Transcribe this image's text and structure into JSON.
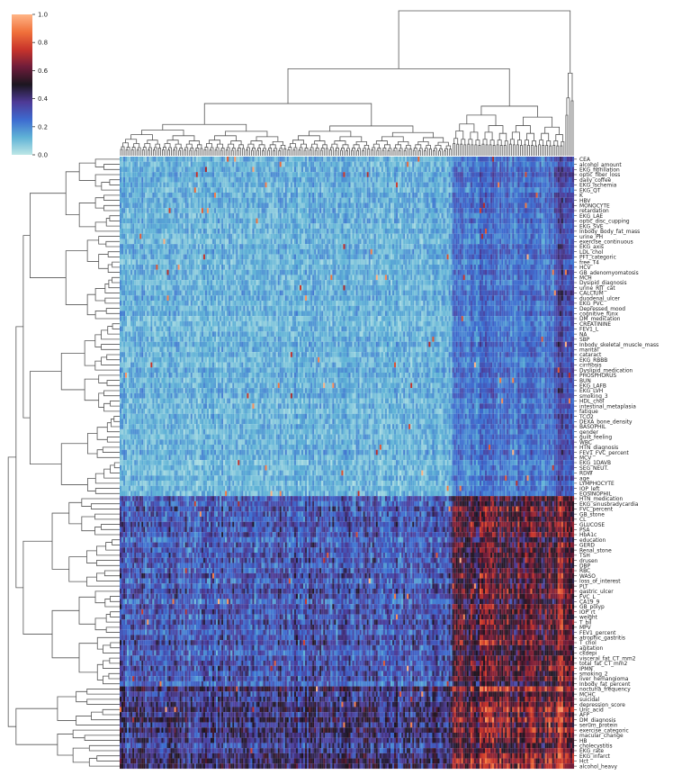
{
  "chart_data": {
    "type": "heatmap",
    "subtype": "clustermap",
    "colormap": "icefire",
    "colorbar": {
      "range": [
        0.0,
        1.0
      ],
      "ticks": [
        "0.0",
        "0.2",
        "0.4",
        "0.6",
        "0.8",
        "1.0"
      ],
      "colors": [
        "#bde7e6",
        "#5fb2d6",
        "#3d6bd0",
        "#4e3a96",
        "#1c1620",
        "#6e1c3a",
        "#c8342b",
        "#f0713b",
        "#ffb486"
      ]
    },
    "row_labels": [
      "CEA",
      "alcohol_amount",
      "EKG_fibrillation",
      "optic_fiber_loss",
      "daily_coffee",
      "EKG_ischemia",
      "EKG_QT",
      "K",
      "HBV",
      "MONOCYTE",
      "retardation",
      "EKG_LAE",
      "optic_disc_cupping",
      "EKG_SVE",
      "Inbody_Body_fat_mass",
      "urine_PH",
      "exercise_continuous",
      "EKG_axis",
      "LDL_chol",
      "PFT_categoric",
      "free_T4",
      "HCV",
      "GB_adenomyomatosis",
      "MCH",
      "Dysipid_diagnosis",
      "urine_RJT_cat",
      "CALCIUM",
      "duodenal_ulcer",
      "EKG_PVC",
      "Depressed_mood",
      "cognitive_funx",
      "DM_medication",
      "CREATININE",
      "FEV1_L",
      "NA",
      "SBP",
      "Inbody_skeletal_muscle_mass",
      "marital",
      "cataract",
      "EKG_RBBB",
      "cirrhosis",
      "Dyslipid_medication",
      "PHOSPHORUS",
      "BUN",
      "EKG_LAFB",
      "EKG_LVH",
      "smoking_3",
      "HDL_chol",
      "intestinal_metaplasia",
      "fatigue",
      "TCO2",
      "DEXA_bone_density",
      "BASOPHIL",
      "gender",
      "guilt_feeling",
      "WBC",
      "HTN_diagnosis",
      "FEV1_FVC_percent",
      "MCV",
      "EKG_1DAVB",
      "SEG_NEUT.",
      "RDW",
      "age",
      "LYMPHOCYTE",
      "IOP_left",
      "EOSINOPHIL",
      "HTN_medication",
      "EKG_sinusbradycardia",
      "FVC_percent",
      "GB_stone",
      "CL",
      "GLUCOSE",
      "PSA",
      "HbA1c",
      "education",
      "GERD",
      "Renal_stone",
      "TSH",
      "drusen",
      "DBP",
      "RBC",
      "WASO",
      "loss_of_interest",
      "PLT",
      "gastric_ulcer",
      "FVC_L",
      "CA19_9",
      "GB_polyp",
      "IOP_rt",
      "weight",
      "T_bil",
      "MPV",
      "FEV1_percent",
      "atrophic_gastritis",
      "T_chol",
      "agitation",
      "ckdepi",
      "visceral_fat_CT_mm2",
      "total_fat_CT_mm2",
      "IPMN",
      "smoking_2",
      "liver_hemangioma",
      "Inbody_fat_percent",
      "nocturia_frequency",
      "MCHC",
      "suicidal",
      "depression_score",
      "Uric_acid",
      "AFP",
      "DM_diagnosis",
      "serum_protein",
      "exercise_categoric",
      "macular_change",
      "HB",
      "cholecystitis",
      "EKG_rate",
      "EKG_infarct",
      "Hct",
      "alcohol_heavy"
    ]
  }
}
